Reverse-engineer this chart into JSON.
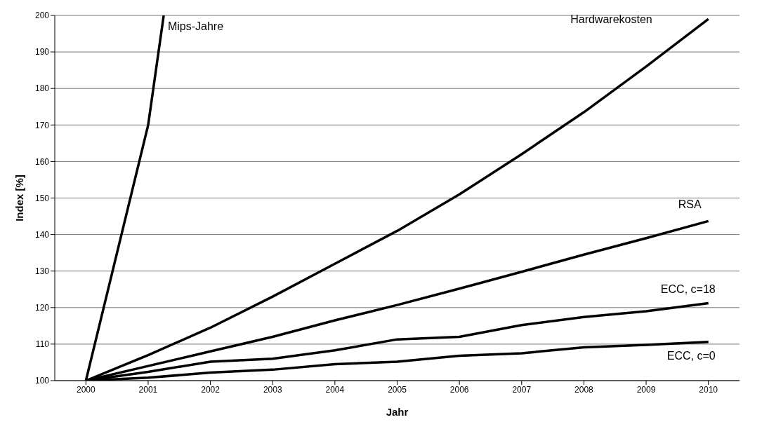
{
  "chart_data": {
    "type": "line",
    "xlabel": "Jahr",
    "ylabel": "Index [%]",
    "x": [
      2000,
      2001,
      2002,
      2003,
      2004,
      2005,
      2006,
      2007,
      2008,
      2009,
      2010
    ],
    "series": [
      {
        "name": "Mips-Jahre",
        "color": "#000000",
        "x": [
          2000,
          2001,
          2001.25
        ],
        "values": [
          100,
          170,
          200
        ]
      },
      {
        "name": "Hardwarekosten",
        "color": "#000000",
        "values": [
          100,
          107,
          114.5,
          123,
          132,
          141,
          151,
          162,
          173.5,
          186,
          199
        ]
      },
      {
        "name": "RSA",
        "color": "#000000",
        "values": [
          100,
          104,
          108,
          112,
          116.5,
          120.7,
          125.2,
          129.8,
          134.5,
          139,
          143.7
        ]
      },
      {
        "name": "ECC, c=18",
        "color": "#000000",
        "values": [
          100,
          102.4,
          105.2,
          106,
          108.3,
          111.3,
          112,
          115.2,
          117.4,
          119,
          121.2
        ]
      },
      {
        "name": "ECC, c=0",
        "color": "#000000",
        "values": [
          100,
          100.8,
          102.2,
          103,
          104.5,
          105.2,
          106.8,
          107.5,
          109.1,
          109.8,
          110.6
        ]
      }
    ],
    "xlim": [
      1999.5,
      2010.5
    ],
    "xticks": [
      2000,
      2001,
      2002,
      2003,
      2004,
      2005,
      2006,
      2007,
      2008,
      2009,
      2010
    ],
    "ylim": [
      100,
      200
    ],
    "yticks": [
      100,
      110,
      120,
      130,
      140,
      150,
      160,
      170,
      180,
      190,
      200
    ],
    "grid": "y",
    "legend": false,
    "marker": "none",
    "line_style": "solid"
  }
}
